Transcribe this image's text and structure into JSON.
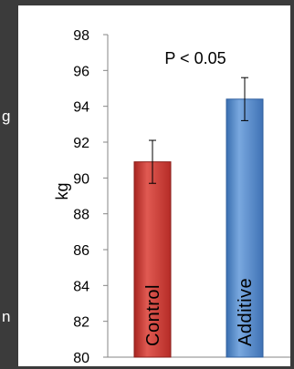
{
  "edge_text": {
    "left_top": "g",
    "left_bottom": "n"
  },
  "chart_data": {
    "type": "bar",
    "categories": [
      "Control",
      "Additive"
    ],
    "values": [
      90.9,
      94.4
    ],
    "errors": [
      1.2,
      1.2
    ],
    "colors": [
      "#d03a35",
      "#4f86c9"
    ],
    "ylabel": "kg",
    "ylim": [
      80,
      98
    ],
    "yticks": [
      "80",
      "82",
      "84",
      "86",
      "88",
      "90",
      "92",
      "94",
      "96",
      "98"
    ],
    "annotation": "P < 0.05",
    "grid": false
  }
}
